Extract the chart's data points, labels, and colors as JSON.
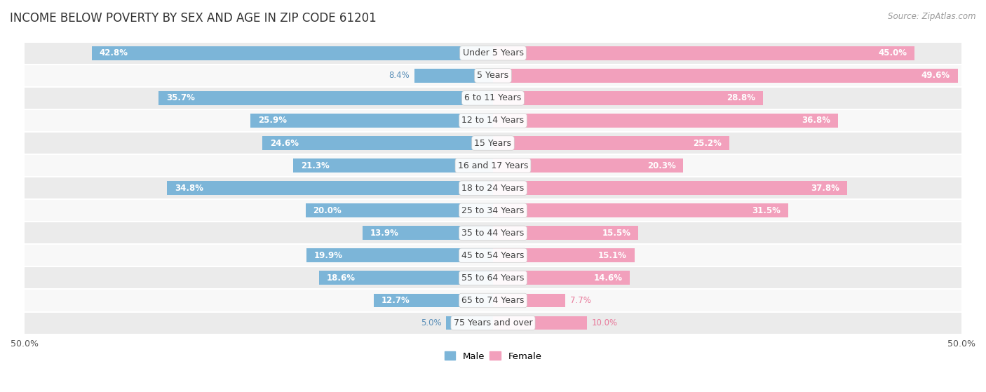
{
  "title": "INCOME BELOW POVERTY BY SEX AND AGE IN ZIP CODE 61201",
  "source": "Source: ZipAtlas.com",
  "categories": [
    "Under 5 Years",
    "5 Years",
    "6 to 11 Years",
    "12 to 14 Years",
    "15 Years",
    "16 and 17 Years",
    "18 to 24 Years",
    "25 to 34 Years",
    "35 to 44 Years",
    "45 to 54 Years",
    "55 to 64 Years",
    "65 to 74 Years",
    "75 Years and over"
  ],
  "male": [
    42.8,
    8.4,
    35.7,
    25.9,
    24.6,
    21.3,
    34.8,
    20.0,
    13.9,
    19.9,
    18.6,
    12.7,
    5.0
  ],
  "female": [
    45.0,
    49.6,
    28.8,
    36.8,
    25.2,
    20.3,
    37.8,
    31.5,
    15.5,
    15.1,
    14.6,
    7.7,
    10.0
  ],
  "male_color": "#7cb5d8",
  "female_color": "#f2a0bc",
  "male_label_color": "#5a8fb8",
  "female_label_color": "#e8799a",
  "background_row_light": "#ebebeb",
  "background_row_white": "#f8f8f8",
  "axis_limit": 50.0,
  "title_fontsize": 12,
  "label_fontsize": 9,
  "bar_value_fontsize": 8.5,
  "source_fontsize": 8.5,
  "bar_height": 0.62
}
